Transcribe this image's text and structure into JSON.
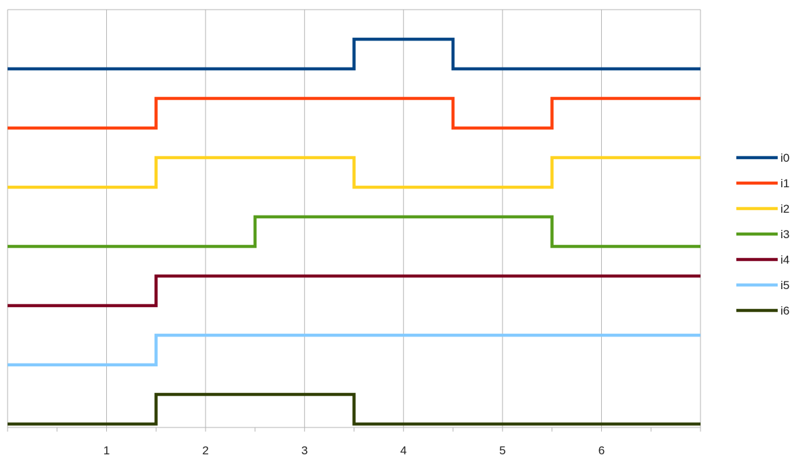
{
  "chart_data": {
    "type": "line",
    "step": true,
    "x": [
      0,
      0.5,
      1,
      1.5,
      2,
      2.5,
      3,
      3.5,
      4,
      4.5,
      5,
      5.5,
      6,
      6.5,
      7
    ],
    "xlim": [
      0,
      7
    ],
    "xticks": [
      1,
      2,
      3,
      4,
      5,
      6
    ],
    "xtick_labels": [
      "1",
      "2",
      "3",
      "4",
      "5",
      "6"
    ],
    "grid": true,
    "legend_position": "right",
    "series": [
      {
        "name": "i0",
        "color": "#004586",
        "values": [
          0,
          0,
          0,
          0,
          0,
          0,
          0,
          1,
          1,
          0,
          0,
          0,
          0,
          0,
          0
        ]
      },
      {
        "name": "i1",
        "color": "#ff420e",
        "values": [
          0,
          0,
          0,
          1,
          1,
          1,
          1,
          1,
          1,
          0,
          0,
          1,
          1,
          1,
          1
        ]
      },
      {
        "name": "i2",
        "color": "#ffd320",
        "values": [
          0,
          0,
          0,
          1,
          1,
          1,
          1,
          0,
          0,
          0,
          0,
          1,
          1,
          1,
          1
        ]
      },
      {
        "name": "i3",
        "color": "#579d1c",
        "values": [
          0,
          0,
          0,
          0,
          0,
          1,
          1,
          1,
          1,
          1,
          1,
          0,
          0,
          0,
          0
        ]
      },
      {
        "name": "i4",
        "color": "#7e0021",
        "values": [
          0,
          0,
          0,
          1,
          1,
          1,
          1,
          1,
          1,
          1,
          1,
          1,
          1,
          1,
          1
        ]
      },
      {
        "name": "i5",
        "color": "#83caff",
        "values": [
          0,
          0,
          0,
          1,
          1,
          1,
          1,
          1,
          1,
          1,
          1,
          1,
          1,
          1,
          1
        ]
      },
      {
        "name": "i6",
        "color": "#314004",
        "values": [
          0,
          0,
          0,
          1,
          1,
          1,
          1,
          0,
          0,
          0,
          0,
          0,
          0,
          0,
          0
        ]
      }
    ]
  }
}
